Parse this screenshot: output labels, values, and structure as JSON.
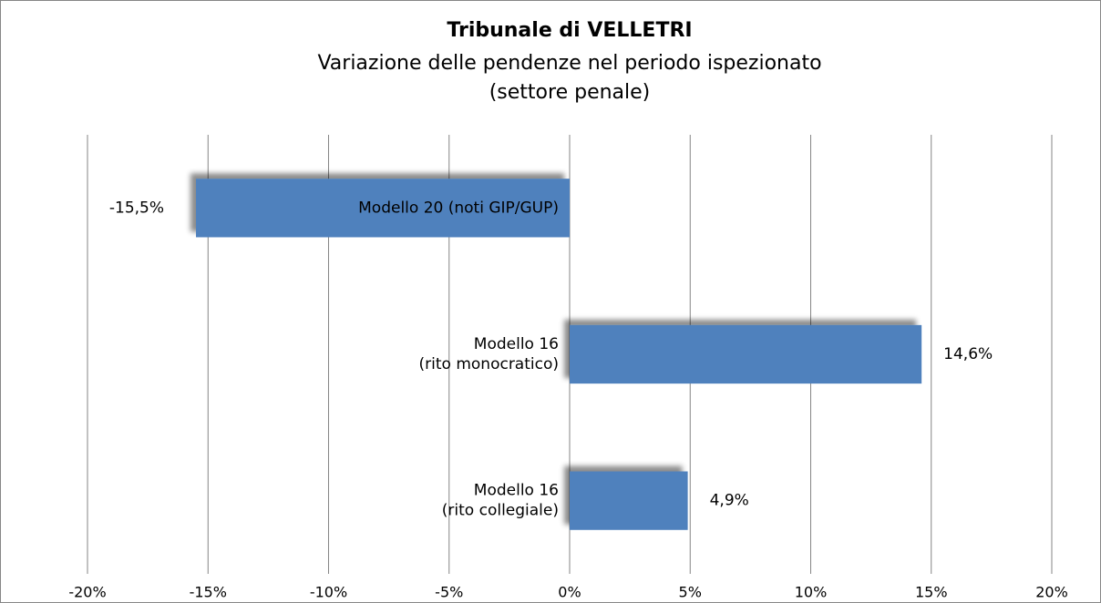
{
  "chart_data": {
    "type": "hbar",
    "title": "Tribunale di VELLETRI",
    "subtitle": [
      "Variazione delle pendenze nel periodo ispezionato",
      "(settore penale)"
    ],
    "categories": [
      [
        "Modello 20 (noti GIP/GUP)"
      ],
      [
        "Modello 16",
        "(rito monocratico)"
      ],
      [
        "Modello 16",
        "(rito collegiale)"
      ]
    ],
    "values": [
      -15.5,
      14.6,
      4.9
    ],
    "value_labels": [
      "-15,5%",
      "14,6%",
      "4,9%"
    ],
    "color": "#4f81bd",
    "xlim": [
      -20,
      20
    ],
    "xticks": [
      {
        "value": -20,
        "label": "-20%"
      },
      {
        "value": -15,
        "label": "-15%"
      },
      {
        "value": -10,
        "label": "-10%"
      },
      {
        "value": -5,
        "label": "-5%"
      },
      {
        "value": 0,
        "label": "0%"
      },
      {
        "value": 5,
        "label": "5%"
      },
      {
        "value": 10,
        "label": "10%"
      },
      {
        "value": 15,
        "label": "15%"
      },
      {
        "value": 20,
        "label": "20%"
      }
    ],
    "grid": true
  }
}
